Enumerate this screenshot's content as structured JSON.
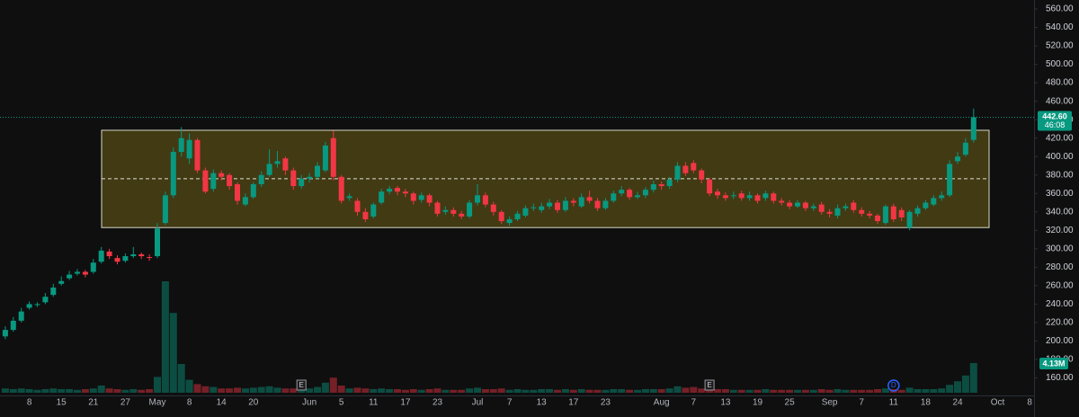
{
  "chart_data": {
    "type": "candlestick",
    "categories": [
      null,
      null,
      null,
      "8",
      null,
      null,
      null,
      "15",
      null,
      null,
      null,
      "21",
      null,
      null,
      null,
      "27",
      null,
      null,
      null,
      "May",
      null,
      null,
      null,
      "8",
      null,
      null,
      null,
      "14",
      null,
      null,
      null,
      "20",
      null,
      null,
      null,
      null,
      null,
      null,
      "Jun",
      null,
      null,
      null,
      "5",
      null,
      null,
      null,
      "11",
      null,
      null,
      null,
      "17",
      null,
      null,
      null,
      "23",
      null,
      null,
      null,
      null,
      "Jul",
      null,
      null,
      null,
      "7",
      null,
      null,
      null,
      "13",
      null,
      null,
      null,
      "17",
      null,
      null,
      null,
      "23",
      null,
      null,
      null,
      null,
      null,
      null,
      "Aug",
      null,
      null,
      null,
      "7",
      null,
      null,
      null,
      "13",
      null,
      null,
      null,
      "19",
      null,
      null,
      null,
      "25",
      null,
      null,
      null,
      null,
      "Sep",
      null,
      null,
      null,
      "7",
      null,
      null,
      null,
      "11",
      null,
      null,
      null,
      "18",
      null,
      null,
      null,
      "24",
      null,
      null,
      null,
      null,
      "Oct",
      null,
      null,
      null,
      "8"
    ],
    "open": [
      205,
      212,
      222,
      236,
      239,
      242,
      250,
      262,
      268,
      273,
      275,
      275,
      286,
      297,
      290,
      287,
      292,
      294,
      291,
      292,
      328,
      358,
      405,
      398,
      418,
      385,
      365,
      382,
      380,
      370,
      348,
      356,
      370,
      380,
      392,
      398,
      385,
      368,
      376,
      378,
      385,
      420,
      378,
      355,
      352,
      340,
      335,
      350,
      362,
      366,
      362,
      360,
      353,
      358,
      350,
      340,
      342,
      338,
      335,
      350,
      358,
      348,
      340,
      328,
      332,
      336,
      344,
      342,
      346,
      350,
      342,
      352,
      346,
      356,
      352,
      344,
      352,
      360,
      364,
      356,
      358,
      364,
      370,
      368,
      375,
      390,
      393,
      385,
      375,
      362,
      358,
      357,
      360,
      355,
      358,
      355,
      360,
      352,
      350,
      346,
      350,
      344,
      348,
      340,
      336,
      344,
      350,
      342,
      338,
      336,
      328,
      346,
      342,
      323,
      338,
      344,
      348,
      355,
      358,
      395,
      402,
      418,
      null,
      null,
      null,
      null,
      null,
      null,
      null
    ],
    "high": [
      216,
      226,
      236,
      243,
      242,
      252,
      262,
      270,
      276,
      278,
      277,
      289,
      302,
      300,
      293,
      295,
      302,
      296,
      294,
      328,
      362,
      410,
      432,
      425,
      420,
      388,
      386,
      385,
      382,
      372,
      360,
      372,
      384,
      408,
      406,
      400,
      388,
      380,
      382,
      394,
      416,
      428,
      380,
      360,
      355,
      344,
      350,
      365,
      368,
      368,
      365,
      362,
      361,
      360,
      352,
      346,
      345,
      341,
      353,
      370,
      361,
      351,
      342,
      335,
      341,
      347,
      349,
      350,
      354,
      353,
      356,
      355,
      360,
      363,
      355,
      355,
      363,
      368,
      366,
      362,
      367,
      374,
      373,
      378,
      394,
      394,
      396,
      387,
      377,
      365,
      361,
      362,
      363,
      362,
      360,
      363,
      362,
      355,
      353,
      353,
      352,
      349,
      351,
      343,
      348,
      349,
      353,
      345,
      341,
      338,
      348,
      349,
      345,
      342,
      347,
      353,
      358,
      362,
      396,
      405,
      420,
      452,
      null,
      null,
      null,
      null,
      null,
      null,
      null
    ],
    "low": [
      202,
      210,
      220,
      234,
      237,
      240,
      248,
      260,
      266,
      271,
      269,
      273,
      284,
      289,
      283,
      285,
      290,
      289,
      287,
      290,
      326,
      355,
      400,
      392,
      382,
      360,
      362,
      374,
      364,
      348,
      346,
      354,
      367,
      378,
      388,
      380,
      364,
      365,
      372,
      375,
      383,
      374,
      349,
      352,
      336,
      329,
      333,
      348,
      359,
      358,
      356,
      348,
      350,
      346,
      335,
      337,
      335,
      332,
      333,
      347,
      345,
      336,
      327,
      325,
      330,
      334,
      341,
      339,
      343,
      339,
      340,
      346,
      344,
      349,
      341,
      342,
      350,
      357,
      353,
      354,
      355,
      361,
      364,
      365,
      372,
      379,
      382,
      371,
      357,
      354,
      352,
      354,
      352,
      352,
      349,
      352,
      349,
      347,
      343,
      344,
      341,
      341,
      337,
      334,
      333,
      341,
      339,
      335,
      333,
      327,
      326,
      329,
      330,
      320,
      335,
      342,
      346,
      352,
      356,
      392,
      400,
      415,
      null,
      null,
      null,
      null,
      null,
      null,
      null
    ],
    "close": [
      212,
      222,
      232,
      240,
      240,
      248,
      258,
      265,
      272,
      275,
      272,
      285,
      298,
      292,
      286,
      292,
      294,
      292,
      290,
      322,
      358,
      405,
      420,
      418,
      385,
      362,
      382,
      378,
      368,
      352,
      356,
      370,
      380,
      392,
      395,
      385,
      368,
      376,
      378,
      390,
      412,
      378,
      352,
      357,
      340,
      332,
      348,
      362,
      365,
      362,
      360,
      352,
      358,
      350,
      338,
      342,
      338,
      335,
      350,
      358,
      348,
      340,
      330,
      332,
      338,
      344,
      345,
      346,
      350,
      342,
      352,
      350,
      356,
      352,
      344,
      352,
      360,
      364,
      356,
      358,
      364,
      370,
      368,
      375,
      390,
      382,
      385,
      375,
      360,
      358,
      355,
      358,
      355,
      358,
      352,
      360,
      352,
      350,
      346,
      350,
      344,
      346,
      340,
      338,
      344,
      346,
      342,
      338,
      336,
      330,
      346,
      332,
      334,
      340,
      344,
      350,
      355,
      358,
      392,
      400,
      415,
      442.6,
      null,
      null,
      null,
      null,
      null,
      null,
      null
    ],
    "up_color": "#089981",
    "down_color": "#f23645",
    "ylim": [
      160,
      560
    ],
    "yticks": [
      {
        "value": 160,
        "label": "160.00"
      },
      {
        "value": 180,
        "label": "180.00"
      },
      {
        "value": 200,
        "label": "200.00"
      },
      {
        "value": 220,
        "label": "220.00"
      },
      {
        "value": 240,
        "label": "240.00"
      },
      {
        "value": 260,
        "label": "260.00"
      },
      {
        "value": 280,
        "label": "280.00"
      },
      {
        "value": 300,
        "label": "300.00"
      },
      {
        "value": 320,
        "label": "320.00"
      },
      {
        "value": 340,
        "label": "340.00"
      },
      {
        "value": 360,
        "label": "360.00"
      },
      {
        "value": 380,
        "label": "380.00"
      },
      {
        "value": 400,
        "label": "400.00"
      },
      {
        "value": 420,
        "label": "420.00"
      },
      {
        "value": 440,
        "label": "440.00"
      },
      {
        "value": 460,
        "label": "460.00"
      },
      {
        "value": 480,
        "label": "480.00"
      },
      {
        "value": 500,
        "label": "500.00"
      },
      {
        "value": 520,
        "label": "520.00"
      },
      {
        "value": 540,
        "label": "540.00"
      },
      {
        "value": 560,
        "label": "560.00"
      }
    ],
    "volume": {
      "values": [
        0.6,
        0.5,
        0.6,
        0.5,
        0.4,
        0.5,
        0.6,
        0.5,
        0.5,
        0.4,
        0.5,
        0.6,
        1.0,
        0.6,
        0.5,
        0.4,
        0.5,
        0.4,
        0.5,
        2.2,
        15.5,
        11.1,
        4.0,
        1.8,
        1.2,
        0.9,
        0.8,
        0.6,
        0.6,
        0.7,
        0.6,
        0.7,
        0.8,
        0.9,
        0.7,
        0.6,
        0.6,
        0.5,
        0.6,
        0.8,
        1.4,
        2.1,
        1.0,
        0.6,
        0.7,
        0.6,
        0.5,
        0.6,
        0.5,
        0.5,
        0.4,
        0.5,
        0.4,
        0.5,
        0.6,
        0.4,
        0.4,
        0.4,
        0.6,
        0.7,
        0.5,
        0.5,
        0.6,
        0.4,
        0.5,
        0.4,
        0.4,
        0.5,
        0.5,
        0.4,
        0.5,
        0.4,
        0.5,
        0.4,
        0.4,
        0.4,
        0.5,
        0.5,
        0.4,
        0.4,
        0.5,
        0.5,
        0.5,
        0.6,
        0.9,
        0.7,
        0.8,
        0.6,
        0.7,
        0.5,
        0.5,
        0.4,
        0.4,
        0.4,
        0.4,
        0.5,
        0.4,
        0.4,
        0.4,
        0.4,
        0.4,
        0.4,
        0.5,
        0.4,
        0.5,
        0.4,
        0.4,
        0.4,
        0.4,
        0.5,
        0.6,
        0.5,
        0.4,
        0.7,
        0.5,
        0.5,
        0.5,
        0.6,
        1.1,
        1.6,
        2.4,
        4.13,
        null,
        null,
        null,
        null,
        null,
        null,
        null
      ],
      "value_label": "4.13M"
    },
    "last_price_label": "442.60",
    "countdown": "46:08",
    "range_box": {
      "top": 428.5,
      "bottom": 323,
      "mid": 376
    },
    "events": [
      {
        "label": "E"
      },
      {
        "label": "E"
      },
      {
        "label": "D"
      }
    ]
  }
}
